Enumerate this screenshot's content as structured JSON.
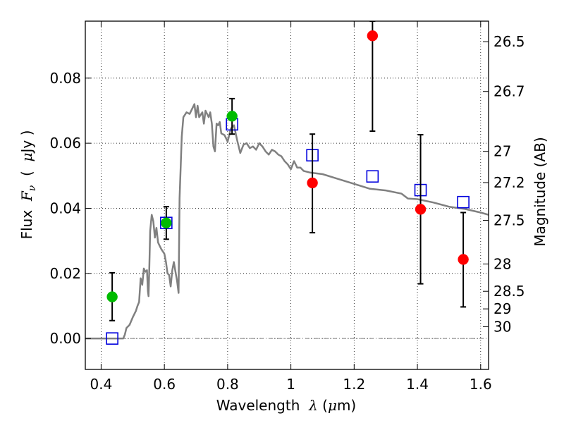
{
  "chart_data": {
    "type": "scatter",
    "xlabel": {
      "prefix": "Wavelength  ",
      "symbol": "λ",
      "suffix": " (",
      "unit_greek": "μ",
      "unit_rest": "m)"
    },
    "ylabel": {
      "prefix": "Flux  ",
      "symbol": "F",
      "subscript": "ν",
      "suffix": "  (  ",
      "unit_greek": "μ",
      "unit_rest": "Jy )"
    },
    "y2label": "Magnitude (AB)",
    "xlim": [
      0.35,
      1.625
    ],
    "ylim": [
      -0.0095,
      0.0975
    ],
    "x_ticks": [
      {
        "value": 0.4,
        "label": "0.4"
      },
      {
        "value": 0.6,
        "label": "0.6"
      },
      {
        "value": 0.8,
        "label": "0.8"
      },
      {
        "value": 1.0,
        "label": "1"
      },
      {
        "value": 1.2,
        "label": "1.2"
      },
      {
        "value": 1.4,
        "label": "1.4"
      },
      {
        "value": 1.6,
        "label": "1.6"
      }
    ],
    "y_ticks": [
      {
        "value": 0.0,
        "label": "0.00"
      },
      {
        "value": 0.02,
        "label": "0.02"
      },
      {
        "value": 0.04,
        "label": "0.04"
      },
      {
        "value": 0.06,
        "label": "0.06"
      },
      {
        "value": 0.08,
        "label": "0.08"
      }
    ],
    "y2_ticks": [
      {
        "flux": 0.0912,
        "label": "26.5"
      },
      {
        "flux": 0.0759,
        "label": "26.7"
      },
      {
        "flux": 0.0575,
        "label": "27"
      },
      {
        "flux": 0.0479,
        "label": "27.2"
      },
      {
        "flux": 0.0363,
        "label": "27.5"
      },
      {
        "flux": 0.0229,
        "label": "28"
      },
      {
        "flux": 0.0145,
        "label": "28.5"
      },
      {
        "flux": 0.0091,
        "label": "29"
      },
      {
        "flux": 0.0036,
        "label": "30"
      }
    ],
    "grid": true,
    "zero_line": true,
    "series": [
      {
        "name": "model spectrum",
        "kind": "line",
        "color": "#808080",
        "points": [
          [
            0.35,
            0.0
          ],
          [
            0.47,
            0.0
          ],
          [
            0.475,
            0.0012
          ],
          [
            0.48,
            0.0032
          ],
          [
            0.49,
            0.0042
          ],
          [
            0.5,
            0.0065
          ],
          [
            0.51,
            0.0085
          ],
          [
            0.515,
            0.01
          ],
          [
            0.52,
            0.0112
          ],
          [
            0.525,
            0.0185
          ],
          [
            0.53,
            0.0165
          ],
          [
            0.535,
            0.0215
          ],
          [
            0.54,
            0.0205
          ],
          [
            0.545,
            0.021
          ],
          [
            0.548,
            0.0145
          ],
          [
            0.55,
            0.013
          ],
          [
            0.552,
            0.02
          ],
          [
            0.555,
            0.033
          ],
          [
            0.56,
            0.038
          ],
          [
            0.565,
            0.036
          ],
          [
            0.57,
            0.031
          ],
          [
            0.575,
            0.034
          ],
          [
            0.58,
            0.0295
          ],
          [
            0.585,
            0.0285
          ],
          [
            0.59,
            0.0275
          ],
          [
            0.6,
            0.026
          ],
          [
            0.605,
            0.0235
          ],
          [
            0.61,
            0.02
          ],
          [
            0.615,
            0.0195
          ],
          [
            0.62,
            0.016
          ],
          [
            0.625,
            0.021
          ],
          [
            0.63,
            0.0235
          ],
          [
            0.635,
            0.0205
          ],
          [
            0.64,
            0.0178
          ],
          [
            0.645,
            0.014
          ],
          [
            0.648,
            0.043
          ],
          [
            0.652,
            0.054
          ],
          [
            0.655,
            0.062
          ],
          [
            0.66,
            0.068
          ],
          [
            0.67,
            0.0695
          ],
          [
            0.68,
            0.069
          ],
          [
            0.69,
            0.071
          ],
          [
            0.695,
            0.072
          ],
          [
            0.7,
            0.068
          ],
          [
            0.705,
            0.0715
          ],
          [
            0.71,
            0.068
          ],
          [
            0.72,
            0.0695
          ],
          [
            0.725,
            0.066
          ],
          [
            0.73,
            0.07
          ],
          [
            0.74,
            0.068
          ],
          [
            0.745,
            0.0695
          ],
          [
            0.75,
            0.066
          ],
          [
            0.755,
            0.059
          ],
          [
            0.76,
            0.0575
          ],
          [
            0.765,
            0.066
          ],
          [
            0.77,
            0.0655
          ],
          [
            0.775,
            0.0665
          ],
          [
            0.78,
            0.063
          ],
          [
            0.79,
            0.0625
          ],
          [
            0.8,
            0.0605
          ],
          [
            0.81,
            0.0645
          ],
          [
            0.82,
            0.0655
          ],
          [
            0.83,
            0.061
          ],
          [
            0.84,
            0.057
          ],
          [
            0.85,
            0.0595
          ],
          [
            0.86,
            0.06
          ],
          [
            0.87,
            0.0585
          ],
          [
            0.88,
            0.059
          ],
          [
            0.89,
            0.058
          ],
          [
            0.9,
            0.06
          ],
          [
            0.91,
            0.059
          ],
          [
            0.92,
            0.0575
          ],
          [
            0.93,
            0.0565
          ],
          [
            0.94,
            0.058
          ],
          [
            0.95,
            0.0575
          ],
          [
            0.96,
            0.0565
          ],
          [
            0.97,
            0.056
          ],
          [
            0.98,
            0.0545
          ],
          [
            0.99,
            0.0535
          ],
          [
            1.0,
            0.052
          ],
          [
            1.01,
            0.0545
          ],
          [
            1.02,
            0.0525
          ],
          [
            1.03,
            0.0525
          ],
          [
            1.04,
            0.0515
          ],
          [
            1.06,
            0.051
          ],
          [
            1.1,
            0.0505
          ],
          [
            1.15,
            0.049
          ],
          [
            1.2,
            0.0475
          ],
          [
            1.25,
            0.046
          ],
          [
            1.3,
            0.0455
          ],
          [
            1.35,
            0.0445
          ],
          [
            1.37,
            0.043
          ],
          [
            1.4,
            0.0428
          ],
          [
            1.45,
            0.0418
          ],
          [
            1.5,
            0.0405
          ],
          [
            1.55,
            0.0398
          ],
          [
            1.6,
            0.0387
          ],
          [
            1.625,
            0.038
          ]
        ]
      },
      {
        "name": "observed (green)",
        "kind": "errorbar-points",
        "color": "#00bb00",
        "points": [
          {
            "x": 0.435,
            "y": 0.0128,
            "ylow": 0.0055,
            "yhigh": 0.0202
          },
          {
            "x": 0.606,
            "y": 0.0355,
            "ylow": 0.0305,
            "yhigh": 0.0405
          },
          {
            "x": 0.814,
            "y": 0.0683,
            "ylow": 0.0628,
            "yhigh": 0.0737
          }
        ]
      },
      {
        "name": "observed (red)",
        "kind": "errorbar-points",
        "color": "#ff0000",
        "points": [
          {
            "x": 1.068,
            "y": 0.0478,
            "ylow": 0.0325,
            "yhigh": 0.0628
          },
          {
            "x": 1.258,
            "y": 0.093,
            "ylow": 0.0637,
            "yhigh": 0.0975
          },
          {
            "x": 1.41,
            "y": 0.0397,
            "ylow": 0.0168,
            "yhigh": 0.0626
          },
          {
            "x": 1.545,
            "y": 0.0243,
            "ylow": 0.0097,
            "yhigh": 0.0387
          }
        ]
      },
      {
        "name": "model photometry",
        "kind": "open-squares",
        "color": "#0000dd",
        "points": [
          {
            "x": 0.435,
            "y": 0.0
          },
          {
            "x": 0.606,
            "y": 0.0355
          },
          {
            "x": 0.814,
            "y": 0.0658
          },
          {
            "x": 1.068,
            "y": 0.0563
          },
          {
            "x": 1.258,
            "y": 0.0498
          },
          {
            "x": 1.41,
            "y": 0.0456
          },
          {
            "x": 1.545,
            "y": 0.0419
          }
        ]
      }
    ]
  }
}
